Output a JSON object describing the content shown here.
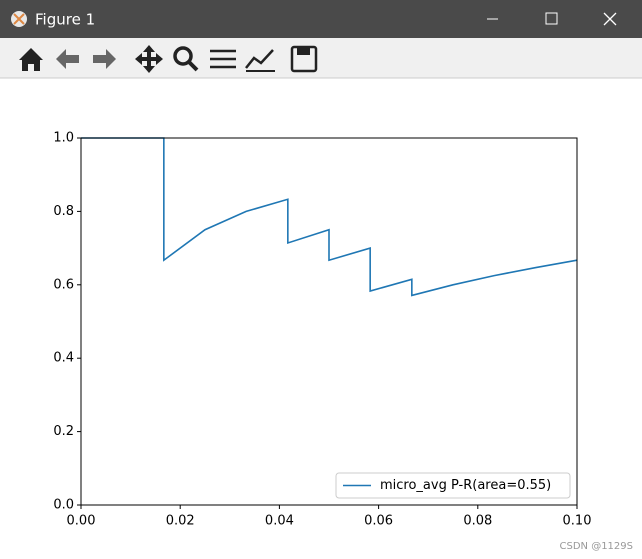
{
  "window": {
    "title": "Figure 1"
  },
  "watermark": "CSDN @1129S",
  "chart_data": {
    "type": "line",
    "x": [
      0,
      0.0167,
      0.0167,
      0.025,
      0.0333,
      0.0417,
      0.0417,
      0.05,
      0.05,
      0.0583,
      0.0583,
      0.0667,
      0.0667,
      0.075,
      0.0833,
      0.0917,
      0.1
    ],
    "series": [
      {
        "name": "micro_avg P-R(area=0.55)",
        "color": "#1f77b4",
        "values": [
          1.0,
          1.0,
          0.667,
          0.75,
          0.8,
          0.833,
          0.714,
          0.75,
          0.667,
          0.7,
          0.583,
          0.615,
          0.571,
          0.6,
          0.625,
          0.647,
          0.667
        ]
      }
    ],
    "xlim": [
      0,
      0.1
    ],
    "ylim": [
      0,
      1.0
    ],
    "xticks": [
      {
        "value": 0,
        "label": "0.00"
      },
      {
        "value": 0.02,
        "label": "0.02"
      },
      {
        "value": 0.04,
        "label": "0.04"
      },
      {
        "value": 0.06,
        "label": "0.06"
      },
      {
        "value": 0.08,
        "label": "0.08"
      },
      {
        "value": 0.1,
        "label": "0.10"
      }
    ],
    "yticks": [
      {
        "value": 0,
        "label": "0.0"
      },
      {
        "value": 0.2,
        "label": "0.2"
      },
      {
        "value": 0.4,
        "label": "0.4"
      },
      {
        "value": 0.6,
        "label": "0.6"
      },
      {
        "value": 0.8,
        "label": "0.8"
      },
      {
        "value": 1.0,
        "label": "1.0"
      }
    ],
    "grid": false,
    "legend": "lower right"
  }
}
